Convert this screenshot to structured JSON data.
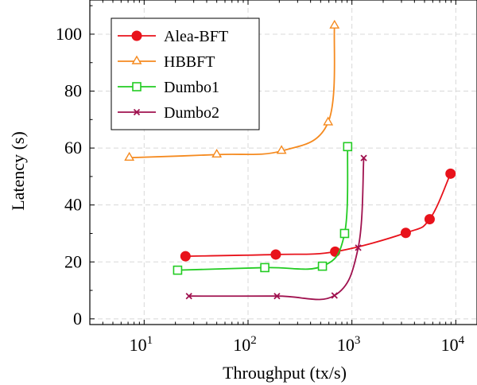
{
  "chart_data": {
    "type": "line",
    "title": "",
    "xlabel": "Throughput (tx/s)",
    "ylabel": "Latency (s)",
    "xscale": "log",
    "xlim": [
      3,
      16000
    ],
    "ylim": [
      -2,
      112
    ],
    "xticks": [
      10,
      100,
      1000,
      10000
    ],
    "xtick_labels": [
      {
        "base": "10",
        "exp": "1"
      },
      {
        "base": "10",
        "exp": "2"
      },
      {
        "base": "10",
        "exp": "3"
      },
      {
        "base": "10",
        "exp": "4"
      }
    ],
    "yticks": [
      0,
      20,
      40,
      60,
      80,
      100
    ],
    "ytick_labels": [
      "0",
      "20",
      "40",
      "60",
      "80",
      "100"
    ],
    "grid": true,
    "legend_position": "top-left",
    "series": [
      {
        "name": "Alea-BFT",
        "color": "#e8121b",
        "marker": "filled-circle",
        "x": [
          25,
          185,
          690,
          3300,
          5600,
          8900
        ],
        "y": [
          22,
          22.6,
          23.6,
          30.2,
          35,
          51
        ]
      },
      {
        "name": "HBBFT",
        "color": "#f58a1f",
        "marker": "open-triangle",
        "x": [
          7.2,
          50,
          210,
          590,
          680
        ],
        "y": [
          56.6,
          57.7,
          59,
          69,
          103
        ]
      },
      {
        "name": "Dumbo1",
        "color": "#22cc22",
        "marker": "open-square",
        "x": [
          21,
          145,
          520,
          850,
          910
        ],
        "y": [
          17.1,
          18,
          18.5,
          30,
          60.5
        ]
      },
      {
        "name": "Dumbo2",
        "color": "#a0124f",
        "marker": "cross",
        "x": [
          27,
          190,
          680,
          1150,
          1300
        ],
        "y": [
          8,
          8,
          8.2,
          25,
          56.5
        ]
      }
    ]
  }
}
